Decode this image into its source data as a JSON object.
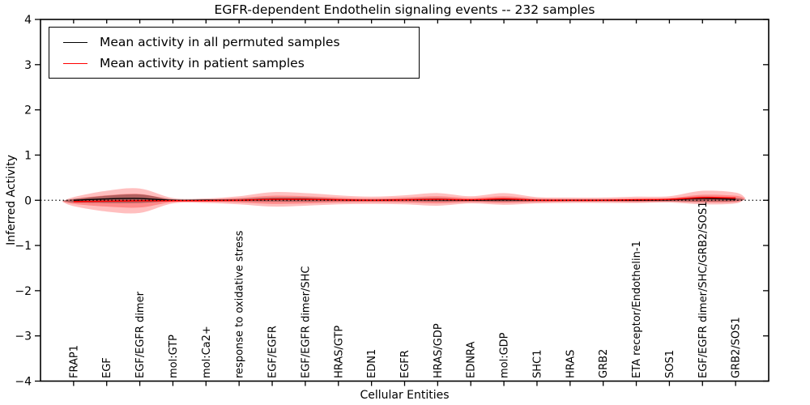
{
  "window": {
    "title": "EGFR-dependent Endothelin signaling events -- 232 samples"
  },
  "legend": {
    "entries": [
      {
        "label": "Mean activity in all permuted samples",
        "color": "#000000"
      },
      {
        "label": "Mean activity in patient samples",
        "color": "#ff0000"
      }
    ]
  },
  "chart_data": {
    "type": "area",
    "title": "EGFR-dependent Endothelin signaling events -- 232 samples",
    "xlabel": "Cellular Entities",
    "ylabel": "Inferred Activity",
    "ylim": [
      -4,
      4
    ],
    "yticks": [
      4,
      3,
      2,
      1,
      0,
      -1,
      -2,
      -3,
      -4
    ],
    "grid": false,
    "legend_position": "upper-left",
    "zero_line": {
      "style": "dotted",
      "color": "#000000",
      "y": 0
    },
    "categories": [
      "FRAP1",
      "EGF",
      "EGF/EGFR dimer",
      "mol:GTP",
      "mol:Ca2+",
      "response to oxidative stress",
      "EGF/EGFR",
      "EGF/EGFR dimer/SHC",
      "HRAS/GTP",
      "EDN1",
      "EGFR",
      "HRAS/GDP",
      "EDNRA",
      "mol:GDP",
      "SHC1",
      "HRAS",
      "GRB2",
      "ETA receptor/Endothelin-1",
      "SOS1",
      "EGF/EGFR dimer/SHC/GRB2/SOS1",
      "GRB2/SOS1"
    ],
    "series": [
      {
        "name": "Mean activity in all permuted samples",
        "color": "#000000",
        "values": [
          0.0,
          0.03,
          0.04,
          0.0,
          0.0,
          0.0,
          0.02,
          0.02,
          0.01,
          0.0,
          0.01,
          0.01,
          0.0,
          0.01,
          0.0,
          0.0,
          0.0,
          0.0,
          0.01,
          0.04,
          0.02
        ]
      },
      {
        "name": "Mean activity in patient samples",
        "color": "#ff0000",
        "values": [
          -0.03,
          -0.02,
          -0.01,
          -0.01,
          -0.01,
          0.0,
          0.02,
          0.02,
          0.01,
          0.0,
          0.01,
          0.02,
          0.01,
          0.03,
          0.0,
          0.0,
          0.0,
          0.01,
          0.02,
          0.06,
          0.05
        ]
      }
    ],
    "bands": [
      {
        "name": "patient-samples-outer-spread",
        "color": "#ff0000",
        "opacity": 0.25,
        "upper": [
          0.07,
          0.21,
          0.26,
          0.05,
          0.04,
          0.09,
          0.18,
          0.16,
          0.11,
          0.08,
          0.11,
          0.16,
          0.09,
          0.16,
          0.07,
          0.06,
          0.06,
          0.08,
          0.09,
          0.21,
          0.17
        ],
        "lower": [
          -0.13,
          -0.25,
          -0.28,
          -0.07,
          -0.06,
          -0.09,
          -0.14,
          -0.12,
          -0.09,
          -0.08,
          -0.09,
          -0.12,
          -0.07,
          -0.1,
          -0.07,
          -0.06,
          -0.06,
          -0.06,
          -0.05,
          -0.09,
          -0.07
        ]
      },
      {
        "name": "patient-samples-inner-spread",
        "color": "#ff0000",
        "opacity": 0.28,
        "upper": [
          0.03,
          0.11,
          0.14,
          0.02,
          0.02,
          0.05,
          0.1,
          0.09,
          0.06,
          0.04,
          0.06,
          0.09,
          0.05,
          0.09,
          0.04,
          0.03,
          0.03,
          0.04,
          0.05,
          0.12,
          0.1
        ],
        "lower": [
          -0.08,
          -0.14,
          -0.16,
          -0.04,
          -0.03,
          -0.05,
          -0.08,
          -0.07,
          -0.05,
          -0.04,
          -0.05,
          -0.07,
          -0.04,
          -0.06,
          -0.04,
          -0.03,
          -0.03,
          -0.04,
          -0.03,
          -0.05,
          -0.04
        ]
      },
      {
        "name": "permuted-samples-spread",
        "color": "#000000",
        "opacity": 0.3,
        "upper": [
          0.03,
          0.1,
          0.13,
          0.02,
          0.02,
          0.03,
          0.06,
          0.06,
          0.03,
          0.02,
          0.03,
          0.05,
          0.02,
          0.05,
          0.02,
          0.02,
          0.02,
          0.02,
          0.03,
          0.08,
          0.05
        ],
        "lower": [
          -0.05,
          -0.06,
          -0.06,
          -0.02,
          -0.02,
          -0.02,
          -0.03,
          -0.03,
          -0.02,
          -0.02,
          -0.02,
          -0.03,
          -0.02,
          -0.03,
          -0.02,
          -0.02,
          -0.02,
          -0.02,
          -0.02,
          -0.03,
          -0.02
        ]
      }
    ]
  }
}
